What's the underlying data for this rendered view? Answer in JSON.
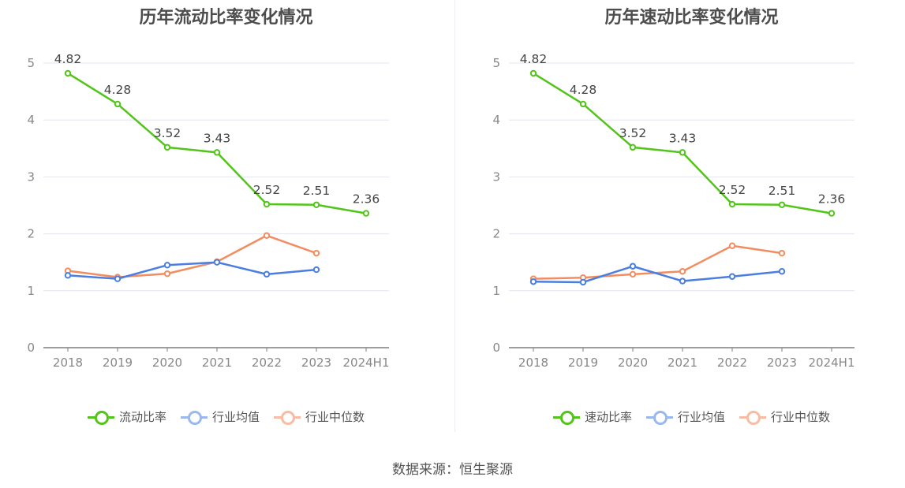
{
  "source": "数据来源：恒生聚源",
  "chart_data": [
    {
      "type": "line",
      "title": "历年流动比率变化情况",
      "categories": [
        "2018",
        "2019",
        "2020",
        "2021",
        "2022",
        "2023",
        "2024H1"
      ],
      "ylim": [
        0,
        5
      ],
      "yticks": [
        0,
        1,
        2,
        3,
        4,
        5
      ],
      "grid": true,
      "legend_position": "bottom",
      "series": [
        {
          "name": "流动比率",
          "color": "#52c41a",
          "labeled": true,
          "values": [
            4.82,
            4.28,
            3.52,
            3.43,
            2.52,
            2.51,
            2.36
          ],
          "labels": [
            "4.82",
            "4.28",
            "3.52",
            "3.43",
            "2.52",
            "2.51",
            "2.36"
          ]
        },
        {
          "name": "行业均值",
          "color": "#4a7ee0",
          "labeled": false,
          "values": [
            1.27,
            1.21,
            1.45,
            1.5,
            1.29,
            1.37,
            null
          ]
        },
        {
          "name": "行业中位数",
          "color": "#f28c61",
          "labeled": false,
          "values": [
            1.35,
            1.24,
            1.3,
            1.51,
            1.97,
            1.66,
            null
          ]
        }
      ]
    },
    {
      "type": "line",
      "title": "历年速动比率变化情况",
      "categories": [
        "2018",
        "2019",
        "2020",
        "2021",
        "2022",
        "2023",
        "2024H1"
      ],
      "ylim": [
        0,
        5
      ],
      "yticks": [
        0,
        1,
        2,
        3,
        4,
        5
      ],
      "grid": true,
      "legend_position": "bottom",
      "series": [
        {
          "name": "速动比率",
          "color": "#52c41a",
          "labeled": true,
          "values": [
            4.82,
            4.28,
            3.52,
            3.43,
            2.52,
            2.51,
            2.36
          ],
          "labels": [
            "4.82",
            "4.28",
            "3.52",
            "3.43",
            "2.52",
            "2.51",
            "2.36"
          ]
        },
        {
          "name": "行业均值",
          "color": "#4a7ee0",
          "labeled": false,
          "values": [
            1.16,
            1.15,
            1.43,
            1.17,
            1.25,
            1.34,
            null
          ]
        },
        {
          "name": "行业中位数",
          "color": "#f28c61",
          "labeled": false,
          "values": [
            1.21,
            1.23,
            1.29,
            1.34,
            1.79,
            1.66,
            null
          ]
        }
      ]
    }
  ]
}
